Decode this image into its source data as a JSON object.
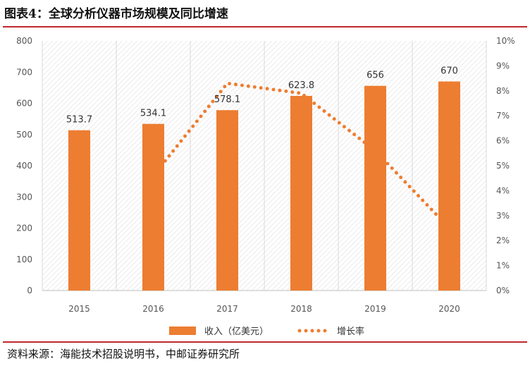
{
  "header": {
    "title": "图表4：全球分析仪器市场规模及同比增速"
  },
  "footer": {
    "source": "资料来源：海能技术招股说明书，中邮证券研究所"
  },
  "colors": {
    "bar": "#ed7d31",
    "line": "#ed7d31",
    "rule": "#c0282e",
    "grid": "#d9d9d9"
  },
  "chart_data": {
    "type": "bar",
    "categories": [
      "2015",
      "2016",
      "2017",
      "2018",
      "2019",
      "2020"
    ],
    "series": [
      {
        "name": "收入（亿美元）",
        "type": "bar",
        "axis": "left",
        "values": [
          513.7,
          534.1,
          578.1,
          623.8,
          656,
          670
        ],
        "labels": [
          "513.7",
          "534.1",
          "578.1",
          "623.8",
          "656",
          "670"
        ]
      },
      {
        "name": "增长率",
        "type": "line",
        "style": "dotted",
        "axis": "right",
        "values": [
          null,
          4.6,
          8.3,
          7.9,
          5.6,
          2.5
        ]
      }
    ],
    "y_left": {
      "min": 0,
      "max": 800,
      "step": 100,
      "ticks": [
        "0",
        "100",
        "200",
        "300",
        "400",
        "500",
        "600",
        "700",
        "800"
      ]
    },
    "y_right": {
      "min": 0,
      "max": 10,
      "step": 1,
      "ticks": [
        "0%",
        "1%",
        "2%",
        "3%",
        "4%",
        "5%",
        "6%",
        "7%",
        "8%",
        "9%",
        "10%"
      ]
    },
    "grid": "vertical hatched background",
    "legend_position": "bottom"
  }
}
